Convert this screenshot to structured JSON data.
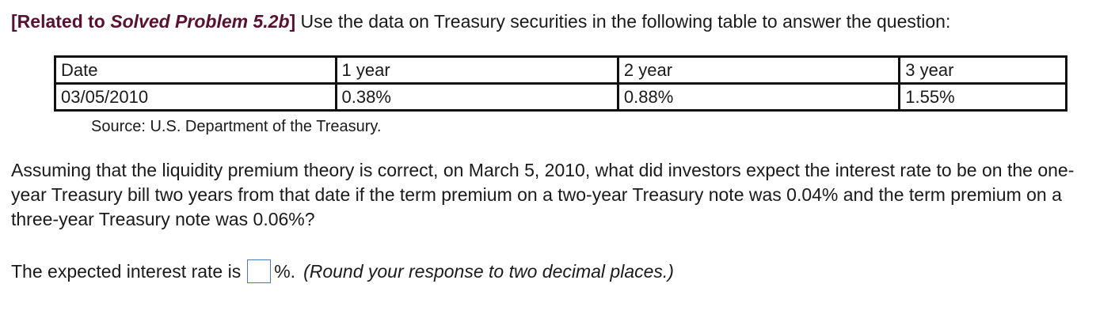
{
  "header": {
    "bracket_open": "[",
    "related_prefix": "Related to ",
    "solved_problem": "Solved Problem 5.2b",
    "bracket_close": "]",
    "instruction": " Use the data on Treasury securities in the following table to answer the question:"
  },
  "table": {
    "headers": [
      "Date",
      "1 year",
      "2 year",
      "3 year"
    ],
    "rows": [
      [
        "03/05/2010",
        "0.38%",
        "0.88%",
        "1.55%"
      ]
    ],
    "source": "Source: U.S. Department of the Treasury."
  },
  "question": {
    "text": "Assuming that the liquidity premium theory is correct, on March 5, 2010, what did investors expect the interest rate to be on  the one-year Treasury bill two years from that date if the term premium on a two-year Treasury note was 0.04% and the term premium on a three-year Treasury note was 0.06%?"
  },
  "answer": {
    "prefix": "The expected interest rate is",
    "value": "",
    "suffix": "%.",
    "hint": "(Round your response to two decimal places.)"
  }
}
